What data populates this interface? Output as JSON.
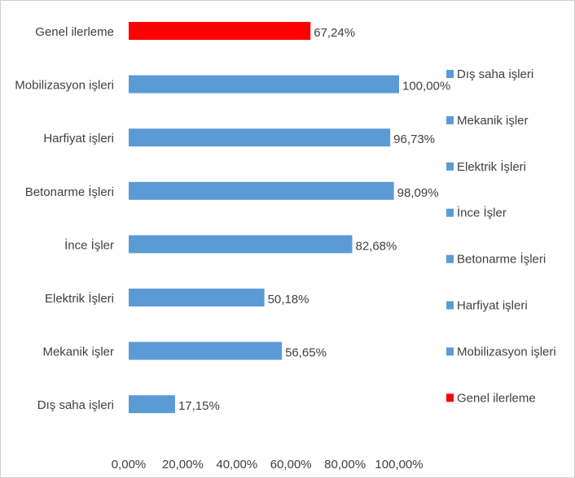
{
  "chart_data": {
    "type": "bar",
    "orientation": "horizontal",
    "categories": [
      "Genel ilerleme",
      "Mobilizasyon işleri",
      "Harfiyat işleri",
      "Betonarme İşleri",
      "İnce İşler",
      "Elektrik İşleri",
      "Mekanik işler",
      "Dış saha işleri"
    ],
    "values": [
      67.24,
      100,
      96.73,
      98.09,
      82.68,
      50.18,
      56.65,
      17.15
    ],
    "value_labels": [
      "67,24%",
      "100,00%",
      "96,73%",
      "98,09%",
      "82,68%",
      "50,18%",
      "56,65%",
      "17,15%"
    ],
    "colors": [
      "#ff0000",
      "#5b9bd5",
      "#5b9bd5",
      "#5b9bd5",
      "#5b9bd5",
      "#5b9bd5",
      "#5b9bd5",
      "#5b9bd5"
    ],
    "xlim": [
      0,
      100
    ],
    "xticks": [
      {
        "value": 0,
        "label": "0,00%"
      },
      {
        "value": 20,
        "label": "20,00%"
      },
      {
        "value": 40,
        "label": "40,00%"
      },
      {
        "value": 60,
        "label": "60,00%"
      },
      {
        "value": 80,
        "label": "80,00%"
      },
      {
        "value": 100,
        "label": "100,00%"
      }
    ],
    "grid": false,
    "legend": "right"
  }
}
